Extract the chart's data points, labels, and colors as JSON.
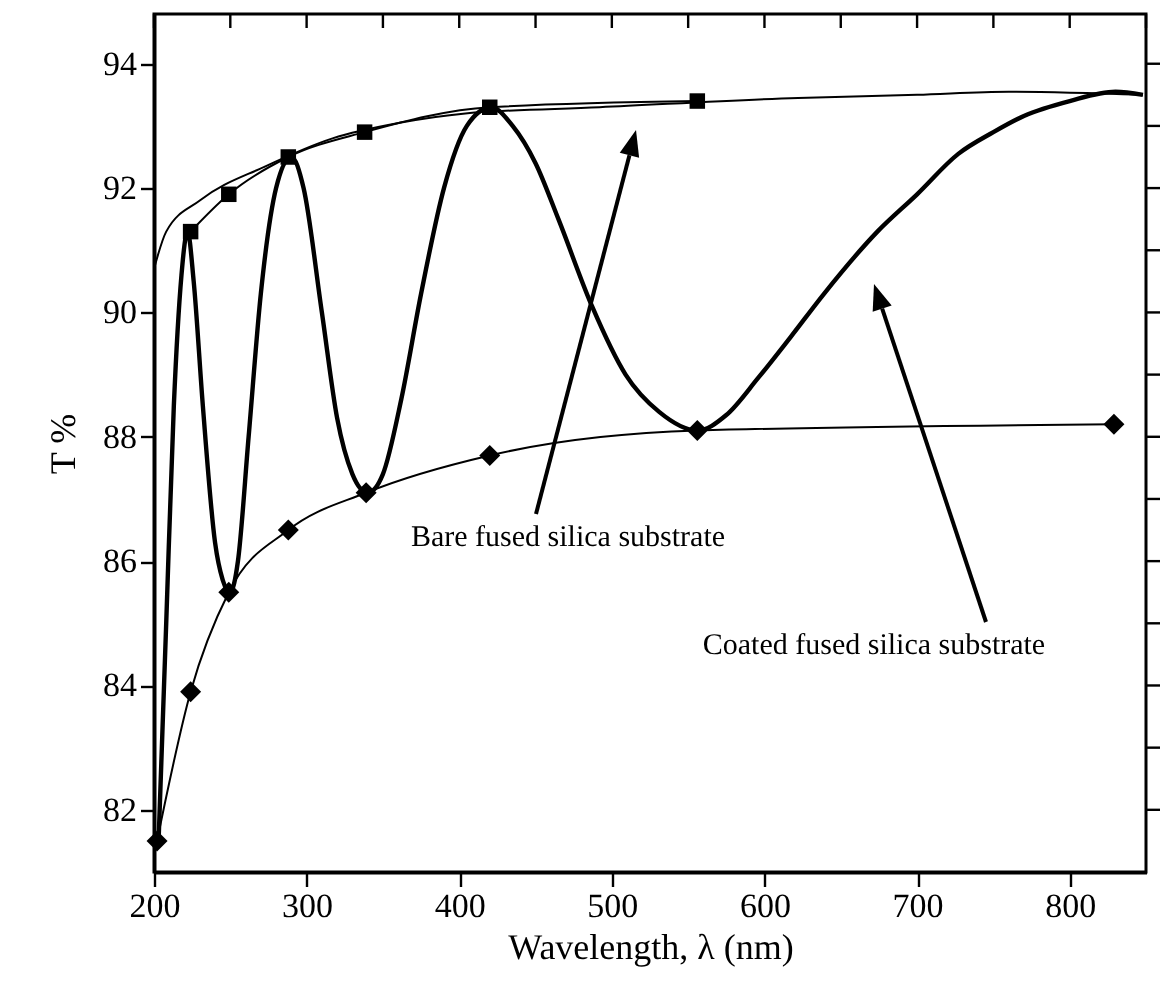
{
  "chart_data": {
    "type": "line",
    "xlabel": "Wavelength, λ (nm)",
    "ylabel": "T %",
    "xlim": [
      200,
      850
    ],
    "ylim": [
      81,
      94.8
    ],
    "xticks": [
      200,
      {
        "value": 250,
        "label": null
      },
      300,
      {
        "value": 350,
        "label": null
      },
      400,
      {
        "value": 450,
        "label": null
      },
      500,
      {
        "value": 550,
        "label": null
      },
      600,
      {
        "value": 650,
        "label": null
      },
      700,
      {
        "value": 750,
        "label": null
      },
      800,
      {
        "value": 850,
        "label": null
      }
    ],
    "yticks": [
      82,
      {
        "value": 83,
        "label": null
      },
      84,
      {
        "value": 85,
        "label": null
      },
      86,
      {
        "value": 87,
        "label": null
      },
      88,
      {
        "value": 89,
        "label": null
      },
      90,
      {
        "value": 91,
        "label": null
      },
      92,
      {
        "value": 93,
        "label": null
      },
      94
    ],
    "grid": false,
    "line_style": "solid",
    "series": [
      {
        "color": "#000000",
        "marker": "none",
        "x": [
          200,
          208,
          230,
          273,
          317,
          361,
          404,
          492,
          622,
          700,
          760,
          848
        ],
        "values": [
          90.7,
          91.3,
          91.8,
          92.35,
          92.8,
          93.05,
          93.2,
          93.3,
          93.45,
          93.5,
          93.55,
          93.5
        ]
      },
      {
        "color": "#000000",
        "marker": "square",
        "x": [
          224,
          249,
          288,
          338,
          420,
          556
        ],
        "values": [
          91.3,
          91.9,
          92.5,
          92.9,
          93.3,
          93.4
        ]
      },
      {
        "color": "#000000",
        "marker": "diamond",
        "x": [
          202,
          224,
          249,
          288,
          339,
          420,
          556,
          829
        ],
        "values": [
          81.5,
          83.9,
          85.5,
          86.5,
          87.1,
          87.7,
          88.1,
          88.2
        ]
      },
      {
        "color": "#000000",
        "marker": "none",
        "x": [
          203,
          208,
          213,
          218,
          222,
          226,
          232,
          240,
          245,
          250,
          255,
          262,
          270,
          280,
          290,
          298,
          310,
          320,
          330,
          340,
          350,
          362,
          375,
          390,
          405,
          421,
          435,
          450,
          465,
          487,
          509,
          531,
          556,
          575,
          596,
          617,
          639,
          674,
          700,
          727,
          750,
          770,
          800,
          830,
          848
        ],
        "values": [
          81.5,
          85,
          88.5,
          90.6,
          91.3,
          90.5,
          88.5,
          86.3,
          85.7,
          85.5,
          86.0,
          88.0,
          90.3,
          92.0,
          92.5,
          92.0,
          90.0,
          88.3,
          87.4,
          87.1,
          87.4,
          88.6,
          90.3,
          92.0,
          93.0,
          93.3,
          93.0,
          92.4,
          91.5,
          90.1,
          89.0,
          88.4,
          88.1,
          88.35,
          88.95,
          89.6,
          90.3,
          91.3,
          91.9,
          92.55,
          92.9,
          93.16,
          93.4,
          93.55,
          93.5
        ]
      }
    ],
    "annotations": [
      "Bare fused silica substrate",
      "Coated fused silica substrate"
    ]
  }
}
